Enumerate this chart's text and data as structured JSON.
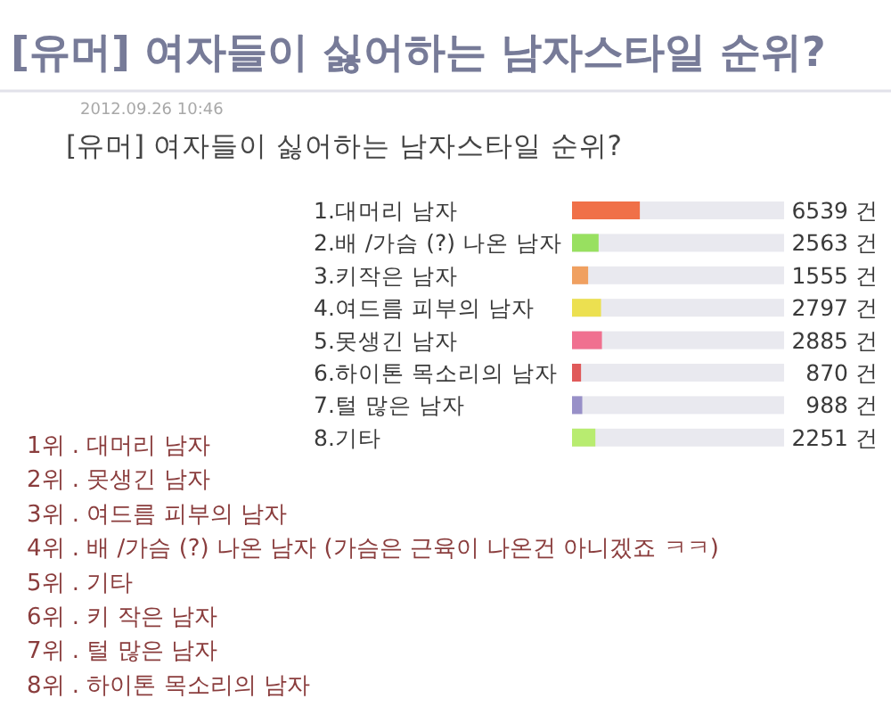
{
  "chart_data": {
    "type": "bar",
    "orientation": "horizontal",
    "title": "[유머] 여자들이 싫어하는 남자스타일 순위?",
    "subtitle": "[유머] 여자들이 싫어하는 남자스타일 순위?",
    "categories": [
      "1.대머리 남자",
      "2.배 /가슴 (?) 나온 남자",
      "3.키작은 남자",
      "4.여드름 피부의 남자",
      "5.못생긴 남자",
      "6.하이톤 목소리의 남자",
      "7.털 많은 남자",
      "8.기타"
    ],
    "values": [
      6539,
      2563,
      1555,
      2797,
      2885,
      870,
      988,
      2251
    ],
    "colors": [
      "#f07048",
      "#98e060",
      "#f0a060",
      "#ece050",
      "#f07090",
      "#e05a5a",
      "#9890c8",
      "#b8ec70"
    ],
    "value_labels": [
      "6539 건",
      "2563 건",
      "1555 건",
      "2797 건",
      "2885 건",
      "870 건",
      "988 건",
      "2251 건"
    ],
    "xlim": [
      0,
      20448
    ],
    "tick_labels": "y",
    "annotations": [
      "2012.09.26 10:46",
      "1위 . 대머리 남자",
      "2위 . 못생긴 남자",
      "3위 . 여드름 피부의 남자",
      "4위 . 배 /가슴 (?) 나온 남자 (가슴은 근육이 나온건 아니겠죠 ㅋㅋ)",
      "5위 . 기타",
      "6위 . 키 작은 남자",
      "7위 . 털 많은 남자",
      "8위 . 하이톤 목소리의 남자"
    ]
  }
}
